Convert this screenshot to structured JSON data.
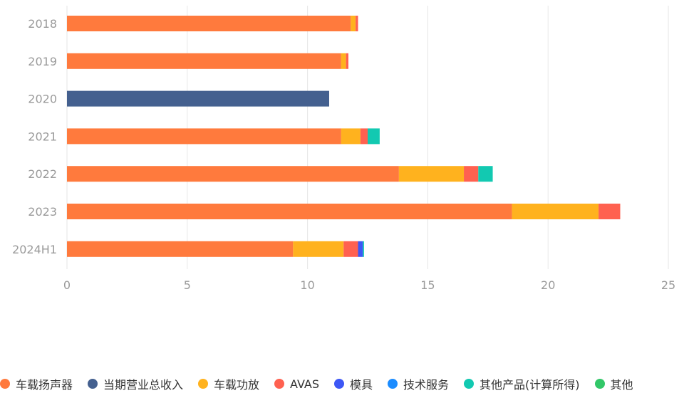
{
  "chart_data": {
    "type": "bar",
    "orientation": "horizontal",
    "stacked": true,
    "categories": [
      "2018",
      "2019",
      "2020",
      "2021",
      "2022",
      "2023",
      "2024H1"
    ],
    "xlim": [
      0,
      25
    ],
    "xticks": [
      "0",
      "5",
      "10",
      "15",
      "20",
      "25"
    ],
    "grid": true,
    "legend_position": "bottom",
    "series": [
      {
        "name": "车载扬声器",
        "color": "#ff7a3d",
        "values": [
          11.8,
          11.4,
          0,
          11.4,
          13.8,
          18.5,
          9.4
        ]
      },
      {
        "name": "当期营业总收入",
        "color": "#44608f",
        "values": [
          0,
          0,
          10.9,
          0,
          0,
          0,
          0
        ]
      },
      {
        "name": "车载功放",
        "color": "#ffb21e",
        "values": [
          0.2,
          0.2,
          0,
          0.8,
          2.7,
          3.6,
          2.1
        ]
      },
      {
        "name": "AVAS",
        "color": "#ff6150",
        "values": [
          0.1,
          0.1,
          0,
          0.3,
          0.6,
          0.9,
          0.6
        ]
      },
      {
        "name": "模具",
        "color": "#3d57f5",
        "values": [
          0,
          0,
          0,
          0,
          0,
          0,
          0.2
        ]
      },
      {
        "name": "技术服务",
        "color": "#1b8cff",
        "values": [
          0,
          0,
          0,
          0,
          0,
          0,
          0
        ]
      },
      {
        "name": "其他产品(计算所得)",
        "color": "#12c9b1",
        "values": [
          0,
          0,
          0,
          0.5,
          0.6,
          0,
          0.05
        ]
      },
      {
        "name": "其他",
        "color": "#32c768",
        "values": [
          0,
          0,
          0,
          0,
          0,
          0,
          0
        ]
      }
    ]
  }
}
